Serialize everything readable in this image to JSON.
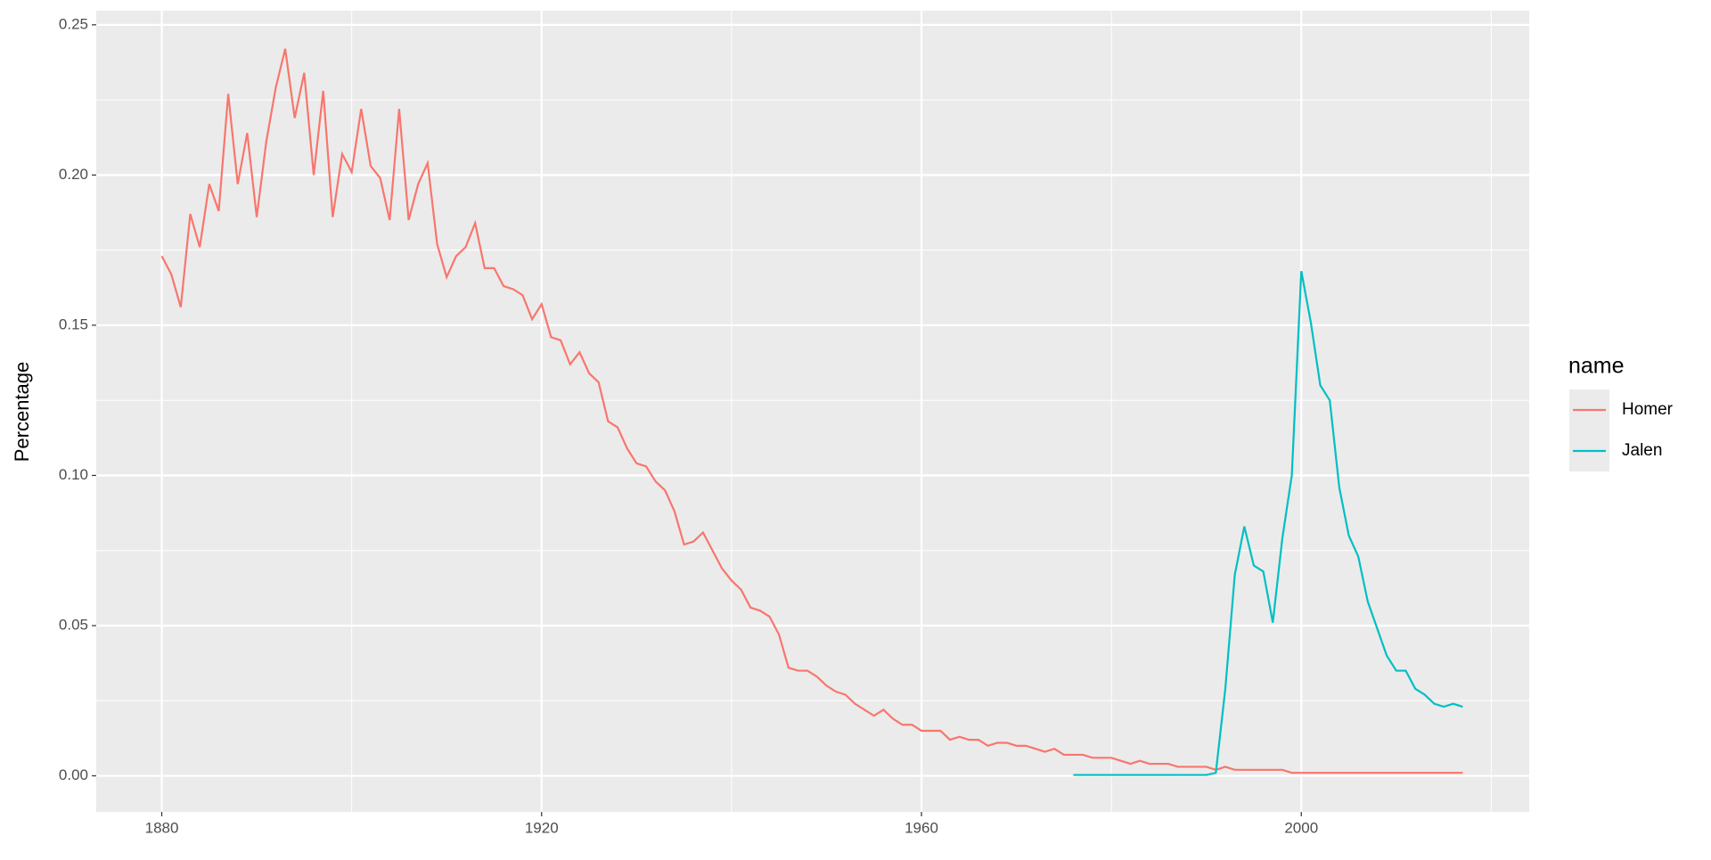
{
  "chart_data": {
    "type": "line",
    "y_label": "Percentage",
    "legend_title": "name",
    "legend_position": "right",
    "grid": true,
    "panel_color": "#EBEBEB",
    "x": [
      1880,
      1881,
      1882,
      1883,
      1884,
      1885,
      1886,
      1887,
      1888,
      1889,
      1890,
      1891,
      1892,
      1893,
      1894,
      1895,
      1896,
      1897,
      1898,
      1899,
      1900,
      1901,
      1902,
      1903,
      1904,
      1905,
      1906,
      1907,
      1908,
      1909,
      1910,
      1911,
      1912,
      1913,
      1914,
      1915,
      1916,
      1917,
      1918,
      1919,
      1920,
      1921,
      1922,
      1923,
      1924,
      1925,
      1926,
      1927,
      1928,
      1929,
      1930,
      1931,
      1932,
      1933,
      1934,
      1935,
      1936,
      1937,
      1938,
      1939,
      1940,
      1941,
      1942,
      1943,
      1944,
      1945,
      1946,
      1947,
      1948,
      1949,
      1950,
      1951,
      1952,
      1953,
      1954,
      1955,
      1956,
      1957,
      1958,
      1959,
      1960,
      1961,
      1962,
      1963,
      1964,
      1965,
      1966,
      1967,
      1968,
      1969,
      1970,
      1971,
      1972,
      1973,
      1974,
      1975,
      1976,
      1977,
      1978,
      1979,
      1980,
      1981,
      1982,
      1983,
      1984,
      1985,
      1986,
      1987,
      1988,
      1989,
      1990,
      1991,
      1992,
      1993,
      1994,
      1995,
      1996,
      1997,
      1998,
      1999,
      2000,
      2001,
      2002,
      2003,
      2004,
      2005,
      2006,
      2007,
      2008,
      2009,
      2010,
      2011,
      2012,
      2013,
      2014,
      2015,
      2016,
      2017
    ],
    "series": [
      {
        "name": "Homer",
        "color": "#F8766D",
        "values": [
          0.173,
          0.167,
          0.156,
          0.187,
          0.176,
          0.197,
          0.188,
          0.227,
          0.197,
          0.214,
          0.186,
          0.211,
          0.229,
          0.242,
          0.219,
          0.234,
          0.2,
          0.228,
          0.186,
          0.207,
          0.201,
          0.222,
          0.203,
          0.199,
          0.185,
          0.222,
          0.185,
          0.197,
          0.204,
          0.177,
          0.166,
          0.173,
          0.176,
          0.184,
          0.169,
          0.169,
          0.163,
          0.162,
          0.16,
          0.152,
          0.157,
          0.146,
          0.145,
          0.137,
          0.141,
          0.134,
          0.131,
          0.118,
          0.116,
          0.109,
          0.104,
          0.103,
          0.098,
          0.095,
          0.088,
          0.077,
          0.078,
          0.081,
          0.075,
          0.069,
          0.065,
          0.062,
          0.056,
          0.055,
          0.053,
          0.047,
          0.036,
          0.035,
          0.035,
          0.033,
          0.03,
          0.028,
          0.027,
          0.024,
          0.022,
          0.02,
          0.022,
          0.019,
          0.017,
          0.017,
          0.015,
          0.015,
          0.015,
          0.012,
          0.013,
          0.012,
          0.012,
          0.01,
          0.011,
          0.011,
          0.01,
          0.01,
          0.009,
          0.008,
          0.009,
          0.007,
          0.007,
          0.007,
          0.006,
          0.006,
          0.006,
          0.005,
          0.004,
          0.005,
          0.004,
          0.004,
          0.004,
          0.003,
          0.003,
          0.003,
          0.003,
          0.002,
          0.003,
          0.002,
          0.002,
          0.002,
          0.002,
          0.002,
          0.002,
          0.001,
          0.001,
          0.001,
          0.001,
          0.001,
          0.001,
          0.001,
          0.001,
          0.001,
          0.001,
          0.001,
          0.001,
          0.001,
          0.001,
          0.001,
          0.001,
          0.001,
          0.001,
          0.001
        ]
      },
      {
        "name": "Jalen",
        "color": "#00BFC4",
        "values": [
          null,
          null,
          null,
          null,
          null,
          null,
          null,
          null,
          null,
          null,
          null,
          null,
          null,
          null,
          null,
          null,
          null,
          null,
          null,
          null,
          null,
          null,
          null,
          null,
          null,
          null,
          null,
          null,
          null,
          null,
          null,
          null,
          null,
          null,
          null,
          null,
          null,
          null,
          null,
          null,
          null,
          null,
          null,
          null,
          null,
          null,
          null,
          null,
          null,
          null,
          null,
          null,
          null,
          null,
          null,
          null,
          null,
          null,
          null,
          null,
          null,
          null,
          null,
          null,
          null,
          null,
          null,
          null,
          null,
          null,
          null,
          null,
          null,
          null,
          null,
          null,
          null,
          null,
          null,
          null,
          null,
          null,
          null,
          null,
          null,
          null,
          null,
          null,
          null,
          null,
          null,
          null,
          null,
          null,
          null,
          null,
          0.0003,
          0.0003,
          0.0003,
          0.0003,
          0.0003,
          0.0003,
          0.0003,
          0.0003,
          0.0003,
          0.0003,
          0.0003,
          0.0003,
          0.0003,
          0.0003,
          0.0003,
          0.001,
          0.029,
          0.067,
          0.083,
          0.07,
          0.068,
          0.051,
          0.079,
          0.1,
          0.168,
          0.151,
          0.13,
          0.125,
          0.096,
          0.08,
          0.073,
          0.058,
          0.049,
          0.04,
          0.035,
          0.035,
          0.029,
          0.027,
          0.024,
          0.023,
          0.024,
          0.023
        ]
      }
    ],
    "xlim": [
      1873.1,
      2024
    ],
    "xticks": [
      1880,
      1920,
      1960,
      2000
    ],
    "ylim": [
      -0.012,
      0.2547
    ],
    "yticks": [
      {
        "value": 0,
        "label": "0.00"
      },
      {
        "value": 0.05,
        "label": "0.05"
      },
      {
        "value": 0.1,
        "label": "0.10"
      },
      {
        "value": 0.15,
        "label": "0.15"
      },
      {
        "value": 0.2,
        "label": "0.20"
      },
      {
        "value": 0.25,
        "label": "0.25"
      }
    ]
  }
}
